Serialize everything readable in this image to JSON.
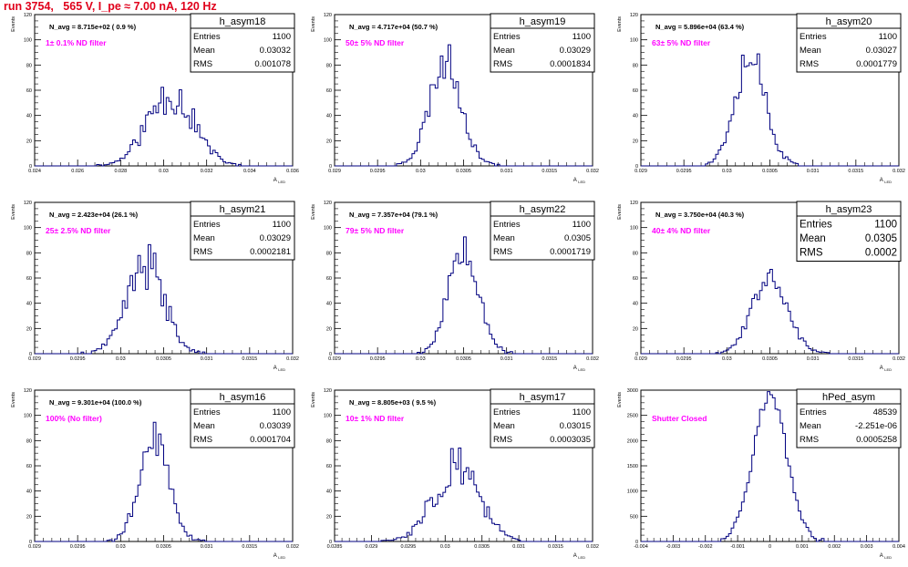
{
  "page": {
    "title": "run 3754,   565 V, I_pe ≈ 7.00 nA, 120 Hz"
  },
  "colors": {
    "title": "#e0001b",
    "histogram": "#000080",
    "annotation": "#ff00ff",
    "axis": "#000000"
  },
  "chart_data": [
    {
      "type": "histogram",
      "name": "h_asym18",
      "ylabel": "Events",
      "xlabel": "A_LED",
      "xlim": [
        0.024,
        0.036
      ],
      "ylim": [
        0,
        120
      ],
      "xticks": [
        0.024,
        0.026,
        0.028,
        0.03,
        0.032,
        0.034,
        0.036
      ],
      "xtick_labels": [
        "0.024",
        "0.026",
        "0.028",
        "0.03",
        "0.032",
        "0.034",
        "0.036"
      ],
      "yticks": [
        0,
        20,
        40,
        60,
        80,
        100,
        120
      ],
      "stats": [
        [
          "Entries",
          "1100"
        ],
        [
          "Mean",
          "0.03032"
        ],
        [
          "RMS",
          "0.001078"
        ]
      ],
      "navg": "N_avg = 8.715e+02 ( 0.9 %)",
      "note": "1± 0.1% ND filter",
      "mean": 0.03032,
      "rms": 0.001078,
      "peak": 58,
      "rough": 0.3,
      "seed": 11
    },
    {
      "type": "histogram",
      "name": "h_asym19",
      "ylabel": "Events",
      "xlabel": "A_LED",
      "xlim": [
        0.029,
        0.032
      ],
      "ylim": [
        0,
        120
      ],
      "xticks": [
        0.029,
        0.0295,
        0.03,
        0.0305,
        0.031,
        0.0315,
        0.032
      ],
      "xtick_labels": [
        "0.029",
        "0.0295",
        "0.03",
        "0.0305",
        "0.031",
        "0.0315",
        "0.032"
      ],
      "yticks": [
        0,
        20,
        40,
        60,
        80,
        100,
        120
      ],
      "stats": [
        [
          "Entries",
          "1100"
        ],
        [
          "Mean",
          "0.03029"
        ],
        [
          "RMS",
          "0.0001834"
        ]
      ],
      "navg": "N_avg = 4.717e+04 (50.7 %)",
      "note": "50± 5% ND filter",
      "mean": 0.03029,
      "rms": 0.0001834,
      "peak": 84,
      "rough": 0.2,
      "seed": 23
    },
    {
      "type": "histogram",
      "name": "h_asym20",
      "ylabel": "Events",
      "xlabel": "A_LED",
      "xlim": [
        0.029,
        0.032
      ],
      "ylim": [
        0,
        120
      ],
      "xticks": [
        0.029,
        0.0295,
        0.03,
        0.0305,
        0.031,
        0.0315,
        0.032
      ],
      "xtick_labels": [
        "0.029",
        "0.0295",
        "0.03",
        "0.0305",
        "0.031",
        "0.0315",
        "0.032"
      ],
      "yticks": [
        0,
        20,
        40,
        60,
        80,
        100,
        120
      ],
      "stats": [
        [
          "Entries",
          "1100"
        ],
        [
          "Mean",
          "0.03027"
        ],
        [
          "RMS",
          "0.0001779"
        ]
      ],
      "navg": "N_avg = 5.896e+04 (63.4 %)",
      "note": "63± 5% ND filter",
      "mean": 0.03027,
      "rms": 0.0001779,
      "peak": 90,
      "rough": 0.22,
      "seed": 37
    },
    {
      "type": "histogram",
      "name": "h_asym21",
      "ylabel": "Events",
      "xlabel": "A_LED",
      "xlim": [
        0.029,
        0.032
      ],
      "ylim": [
        0,
        120
      ],
      "xticks": [
        0.029,
        0.0295,
        0.03,
        0.0305,
        0.031,
        0.0315,
        0.032
      ],
      "xtick_labels": [
        "0.029",
        "0.0295",
        "0.03",
        "0.0305",
        "0.031",
        "0.0315",
        "0.032"
      ],
      "yticks": [
        0,
        20,
        40,
        60,
        80,
        100,
        120
      ],
      "stats": [
        [
          "Entries",
          "1100"
        ],
        [
          "Mean",
          "0.03029"
        ],
        [
          "RMS",
          "0.0002181"
        ]
      ],
      "navg": "N_avg = 2.423e+04 (26.1 %)",
      "note": "25± 2.5% ND filter",
      "mean": 0.03029,
      "rms": 0.0002181,
      "peak": 70,
      "rough": 0.28,
      "seed": 41
    },
    {
      "type": "histogram",
      "name": "h_asym22",
      "ylabel": "Events",
      "xlabel": "A_LED",
      "xlim": [
        0.029,
        0.032
      ],
      "ylim": [
        0,
        120
      ],
      "xticks": [
        0.029,
        0.0295,
        0.03,
        0.0305,
        0.031,
        0.0315,
        0.032
      ],
      "xtick_labels": [
        "0.029",
        "0.0295",
        "0.03",
        "0.0305",
        "0.031",
        "0.0315",
        "0.032"
      ],
      "yticks": [
        0,
        20,
        40,
        60,
        80,
        100,
        120
      ],
      "stats": [
        [
          "Entries",
          "1100"
        ],
        [
          "Mean",
          "0.0305"
        ],
        [
          "RMS",
          "0.0001719"
        ]
      ],
      "navg": "N_avg = 7.357e+04 (79.1 %)",
      "note": "79± 5% ND filter",
      "mean": 0.0305,
      "rms": 0.0001719,
      "peak": 90,
      "rough": 0.2,
      "seed": 53
    },
    {
      "type": "histogram",
      "name": "h_asym23",
      "ylabel": "Events",
      "xlabel": "A_LED",
      "xlim": [
        0.029,
        0.032
      ],
      "ylim": [
        0,
        120
      ],
      "xticks": [
        0.029,
        0.0295,
        0.03,
        0.0305,
        0.031,
        0.0315,
        0.032
      ],
      "xtick_labels": [
        "0.029",
        "0.0295",
        "0.03",
        "0.0305",
        "0.031",
        "0.0315",
        "0.032"
      ],
      "yticks": [
        0,
        20,
        40,
        60,
        80,
        100,
        120
      ],
      "stats": [
        [
          "Entries",
          "1100"
        ],
        [
          "Mean",
          "0.0305"
        ],
        [
          "RMS",
          "0.0002"
        ]
      ],
      "big_stats": true,
      "navg": "N_avg = 3.750e+04 (40.3 %)",
      "note": "40± 4% ND filter",
      "mean": 0.0305,
      "rms": 0.0002,
      "peak": 64,
      "rough": 0.15,
      "seed": 67
    },
    {
      "type": "histogram",
      "name": "h_asym16",
      "ylabel": "Events",
      "xlabel": "A_LED",
      "xlim": [
        0.029,
        0.032
      ],
      "ylim": [
        0,
        120
      ],
      "xticks": [
        0.029,
        0.0295,
        0.03,
        0.0305,
        0.031,
        0.0315,
        0.032
      ],
      "xtick_labels": [
        "0.029",
        "0.0295",
        "0.03",
        "0.0305",
        "0.031",
        "0.0315",
        "0.032"
      ],
      "yticks": [
        0,
        20,
        40,
        60,
        80,
        100,
        120
      ],
      "stats": [
        [
          "Entries",
          "1100"
        ],
        [
          "Mean",
          "0.03039"
        ],
        [
          "RMS",
          "0.0001704"
        ]
      ],
      "navg": "N_avg = 9.301e+04 (100.0 %)",
      "note": "100% (No filter)",
      "mean": 0.03039,
      "rms": 0.0001704,
      "peak": 82,
      "rough": 0.18,
      "seed": 79
    },
    {
      "type": "histogram",
      "name": "h_asym17",
      "ylabel": "Events",
      "xlabel": "A_LED",
      "xlim": [
        0.0285,
        0.032
      ],
      "ylim": [
        0,
        120
      ],
      "xticks": [
        0.0285,
        0.029,
        0.0295,
        0.03,
        0.0305,
        0.031,
        0.0315,
        0.032
      ],
      "xtick_labels": [
        "0.0285",
        "0.029",
        "0.0295",
        "0.03",
        "0.0305",
        "0.031",
        "0.0315",
        "0.032"
      ],
      "yticks": [
        0,
        20,
        40,
        60,
        80,
        100,
        120
      ],
      "stats": [
        [
          "Entries",
          "1100"
        ],
        [
          "Mean",
          "0.03015"
        ],
        [
          "RMS",
          "0.0003035"
        ]
      ],
      "navg": "N_avg = 8.805e+03 ( 9.5 %)",
      "note": "10± 1% ND filter",
      "mean": 0.03015,
      "rms": 0.0003035,
      "peak": 62,
      "rough": 0.3,
      "seed": 83
    },
    {
      "type": "histogram",
      "name": "hPed_asym",
      "ylabel": "Events",
      "xlabel": "A_LED",
      "xlim": [
        -0.004,
        0.004
      ],
      "ylim": [
        0,
        3000
      ],
      "xticks": [
        -0.004,
        -0.003,
        -0.002,
        -0.001,
        0,
        0.001,
        0.002,
        0.003,
        0.004
      ],
      "xtick_labels": [
        "-0.004",
        "-0.003",
        "-0.002",
        "-0.001",
        "0",
        "0.001",
        "0.002",
        "0.003",
        "0.004"
      ],
      "yticks": [
        0,
        500,
        1000,
        1500,
        2000,
        2500,
        3000
      ],
      "stats": [
        [
          "Entries",
          "48539"
        ],
        [
          "Mean",
          "-2.251e-06"
        ],
        [
          "RMS",
          "0.0005258"
        ]
      ],
      "navg": "",
      "note": "Shutter Closed",
      "mean": -2.251e-06,
      "rms": 0.0005258,
      "peak": 2900,
      "rough": 0.06,
      "seed": 97
    }
  ]
}
